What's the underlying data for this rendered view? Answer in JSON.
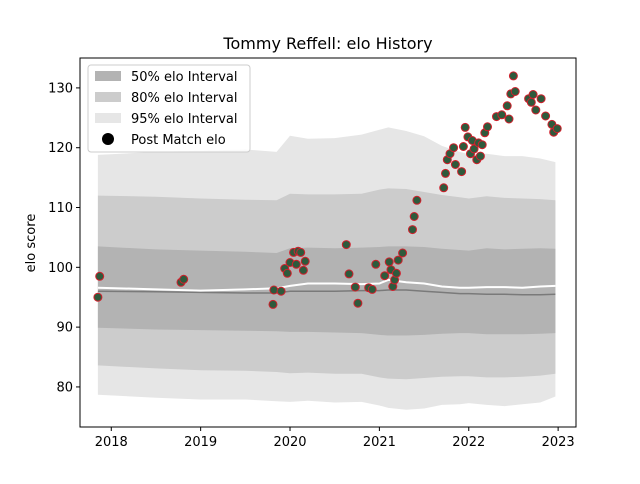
{
  "chart_data": {
    "type": "scatter",
    "title": "Tommy Reffell: elo History",
    "xlabel": "",
    "ylabel": "elo score",
    "xlim": [
      2017.65,
      2023.2
    ],
    "ylim": [
      73.3,
      135.0
    ],
    "x_ticks": [
      2018,
      2019,
      2020,
      2021,
      2022,
      2023
    ],
    "x_tick_labels": [
      "2018",
      "2019",
      "2020",
      "2021",
      "2022",
      "2023"
    ],
    "y_ticks": [
      80,
      90,
      100,
      110,
      120,
      130
    ],
    "y_tick_labels": [
      "80",
      "90",
      "100",
      "110",
      "120",
      "130"
    ],
    "legend": {
      "position": "top-left",
      "entries": [
        "50% elo Interval",
        "80% elo Interval",
        "95% elo Interval",
        "Post Match elo"
      ]
    },
    "colors": {
      "band50": "#b3b3b3",
      "band80": "#cccccc",
      "band95": "#e6e6e6",
      "mean_line": "#ffffff",
      "median_line": "#7a7a7a",
      "point_fill": "#2e5a3c",
      "point_edge": "#d0202c"
    },
    "band_x": [
      2017.85,
      2018.5,
      2019.0,
      2019.5,
      2019.85,
      2020.0,
      2020.2,
      2020.5,
      2020.8,
      2021.0,
      2021.1,
      2021.3,
      2021.5,
      2021.7,
      2021.9,
      2022.0,
      2022.2,
      2022.4,
      2022.6,
      2022.8,
      2022.97
    ],
    "band95_upper": [
      118.8,
      119.3,
      119.5,
      119.7,
      119.3,
      122.0,
      121.5,
      121.6,
      122.2,
      123.0,
      123.4,
      122.8,
      121.9,
      120.3,
      119.3,
      118.9,
      119.0,
      118.6,
      118.6,
      118.2,
      117.6
    ],
    "band95_lower": [
      78.7,
      78.2,
      77.9,
      77.9,
      77.6,
      77.5,
      77.7,
      77.4,
      77.5,
      76.9,
      76.5,
      76.2,
      76.4,
      77.0,
      77.1,
      77.3,
      77.0,
      76.8,
      77.1,
      77.4,
      78.4
    ],
    "band80_upper": [
      112.0,
      111.8,
      111.5,
      111.3,
      111.2,
      112.3,
      112.2,
      112.2,
      112.3,
      113.0,
      113.2,
      113.1,
      112.6,
      112.1,
      111.7,
      111.5,
      111.9,
      111.6,
      111.5,
      111.4,
      111.2
    ],
    "band80_lower": [
      83.6,
      83.1,
      82.8,
      82.7,
      82.5,
      82.3,
      82.4,
      82.2,
      82.2,
      81.6,
      81.4,
      81.3,
      81.5,
      81.7,
      81.8,
      81.8,
      81.6,
      81.6,
      81.7,
      81.9,
      82.2
    ],
    "band50_upper": [
      103.5,
      103.0,
      102.8,
      102.6,
      102.4,
      103.2,
      103.3,
      103.2,
      103.3,
      103.4,
      103.5,
      103.5,
      103.4,
      103.1,
      102.9,
      102.8,
      103.2,
      103.0,
      103.1,
      103.2,
      103.1
    ],
    "band50_lower": [
      89.9,
      89.6,
      89.5,
      89.4,
      89.3,
      89.2,
      89.2,
      89.1,
      89.0,
      88.7,
      88.6,
      88.6,
      88.7,
      88.9,
      89.0,
      89.0,
      88.8,
      88.8,
      88.8,
      88.9,
      89.0
    ],
    "mean_line": [
      96.6,
      96.3,
      96.1,
      96.3,
      96.5,
      96.9,
      97.3,
      97.3,
      97.2,
      97.3,
      97.9,
      97.5,
      97.3,
      96.8,
      96.6,
      96.6,
      96.7,
      96.7,
      96.6,
      96.8,
      96.9
    ],
    "median_line": [
      96.0,
      95.9,
      95.8,
      95.7,
      95.7,
      96.0,
      96.0,
      96.0,
      96.1,
      96.1,
      96.2,
      96.2,
      96.0,
      95.8,
      95.6,
      95.6,
      95.5,
      95.5,
      95.4,
      95.4,
      95.5
    ],
    "points": [
      [
        2017.85,
        95.0
      ],
      [
        2017.87,
        98.5
      ],
      [
        2018.78,
        97.5
      ],
      [
        2018.81,
        98.0
      ],
      [
        2019.81,
        93.8
      ],
      [
        2019.82,
        96.2
      ],
      [
        2019.9,
        96.0
      ],
      [
        2019.94,
        99.8
      ],
      [
        2019.97,
        99.0
      ],
      [
        2020.0,
        100.8
      ],
      [
        2020.04,
        102.5
      ],
      [
        2020.07,
        100.5
      ],
      [
        2020.09,
        102.7
      ],
      [
        2020.12,
        102.5
      ],
      [
        2020.15,
        99.5
      ],
      [
        2020.17,
        101.0
      ],
      [
        2020.63,
        103.8
      ],
      [
        2020.66,
        98.9
      ],
      [
        2020.73,
        96.7
      ],
      [
        2020.76,
        94.0
      ],
      [
        2020.88,
        96.6
      ],
      [
        2020.92,
        96.3
      ],
      [
        2020.96,
        100.5
      ],
      [
        2021.06,
        98.6
      ],
      [
        2021.11,
        100.9
      ],
      [
        2021.13,
        99.6
      ],
      [
        2021.15,
        96.8
      ],
      [
        2021.17,
        97.9
      ],
      [
        2021.19,
        99.0
      ],
      [
        2021.21,
        101.2
      ],
      [
        2021.26,
        102.4
      ],
      [
        2021.37,
        106.3
      ],
      [
        2021.39,
        108.5
      ],
      [
        2021.42,
        111.2
      ],
      [
        2021.72,
        113.3
      ],
      [
        2021.74,
        115.7
      ],
      [
        2021.76,
        118.0
      ],
      [
        2021.79,
        119.0
      ],
      [
        2021.83,
        120.0
      ],
      [
        2021.85,
        117.2
      ],
      [
        2021.92,
        116.0
      ],
      [
        2021.94,
        120.2
      ],
      [
        2021.96,
        123.4
      ],
      [
        2021.99,
        121.8
      ],
      [
        2022.02,
        119.0
      ],
      [
        2022.04,
        121.2
      ],
      [
        2022.06,
        119.8
      ],
      [
        2022.09,
        118.0
      ],
      [
        2022.11,
        120.8
      ],
      [
        2022.13,
        118.6
      ],
      [
        2022.15,
        120.5
      ],
      [
        2022.18,
        122.5
      ],
      [
        2022.21,
        123.5
      ],
      [
        2022.31,
        125.2
      ],
      [
        2022.37,
        125.5
      ],
      [
        2022.43,
        127.0
      ],
      [
        2022.45,
        124.8
      ],
      [
        2022.47,
        129.0
      ],
      [
        2022.5,
        132.0
      ],
      [
        2022.52,
        129.4
      ],
      [
        2022.67,
        128.2
      ],
      [
        2022.7,
        127.6
      ],
      [
        2022.72,
        128.9
      ],
      [
        2022.75,
        126.3
      ],
      [
        2022.81,
        128.2
      ],
      [
        2022.86,
        125.3
      ],
      [
        2022.93,
        123.9
      ],
      [
        2022.95,
        122.6
      ],
      [
        2022.99,
        123.2
      ]
    ]
  }
}
